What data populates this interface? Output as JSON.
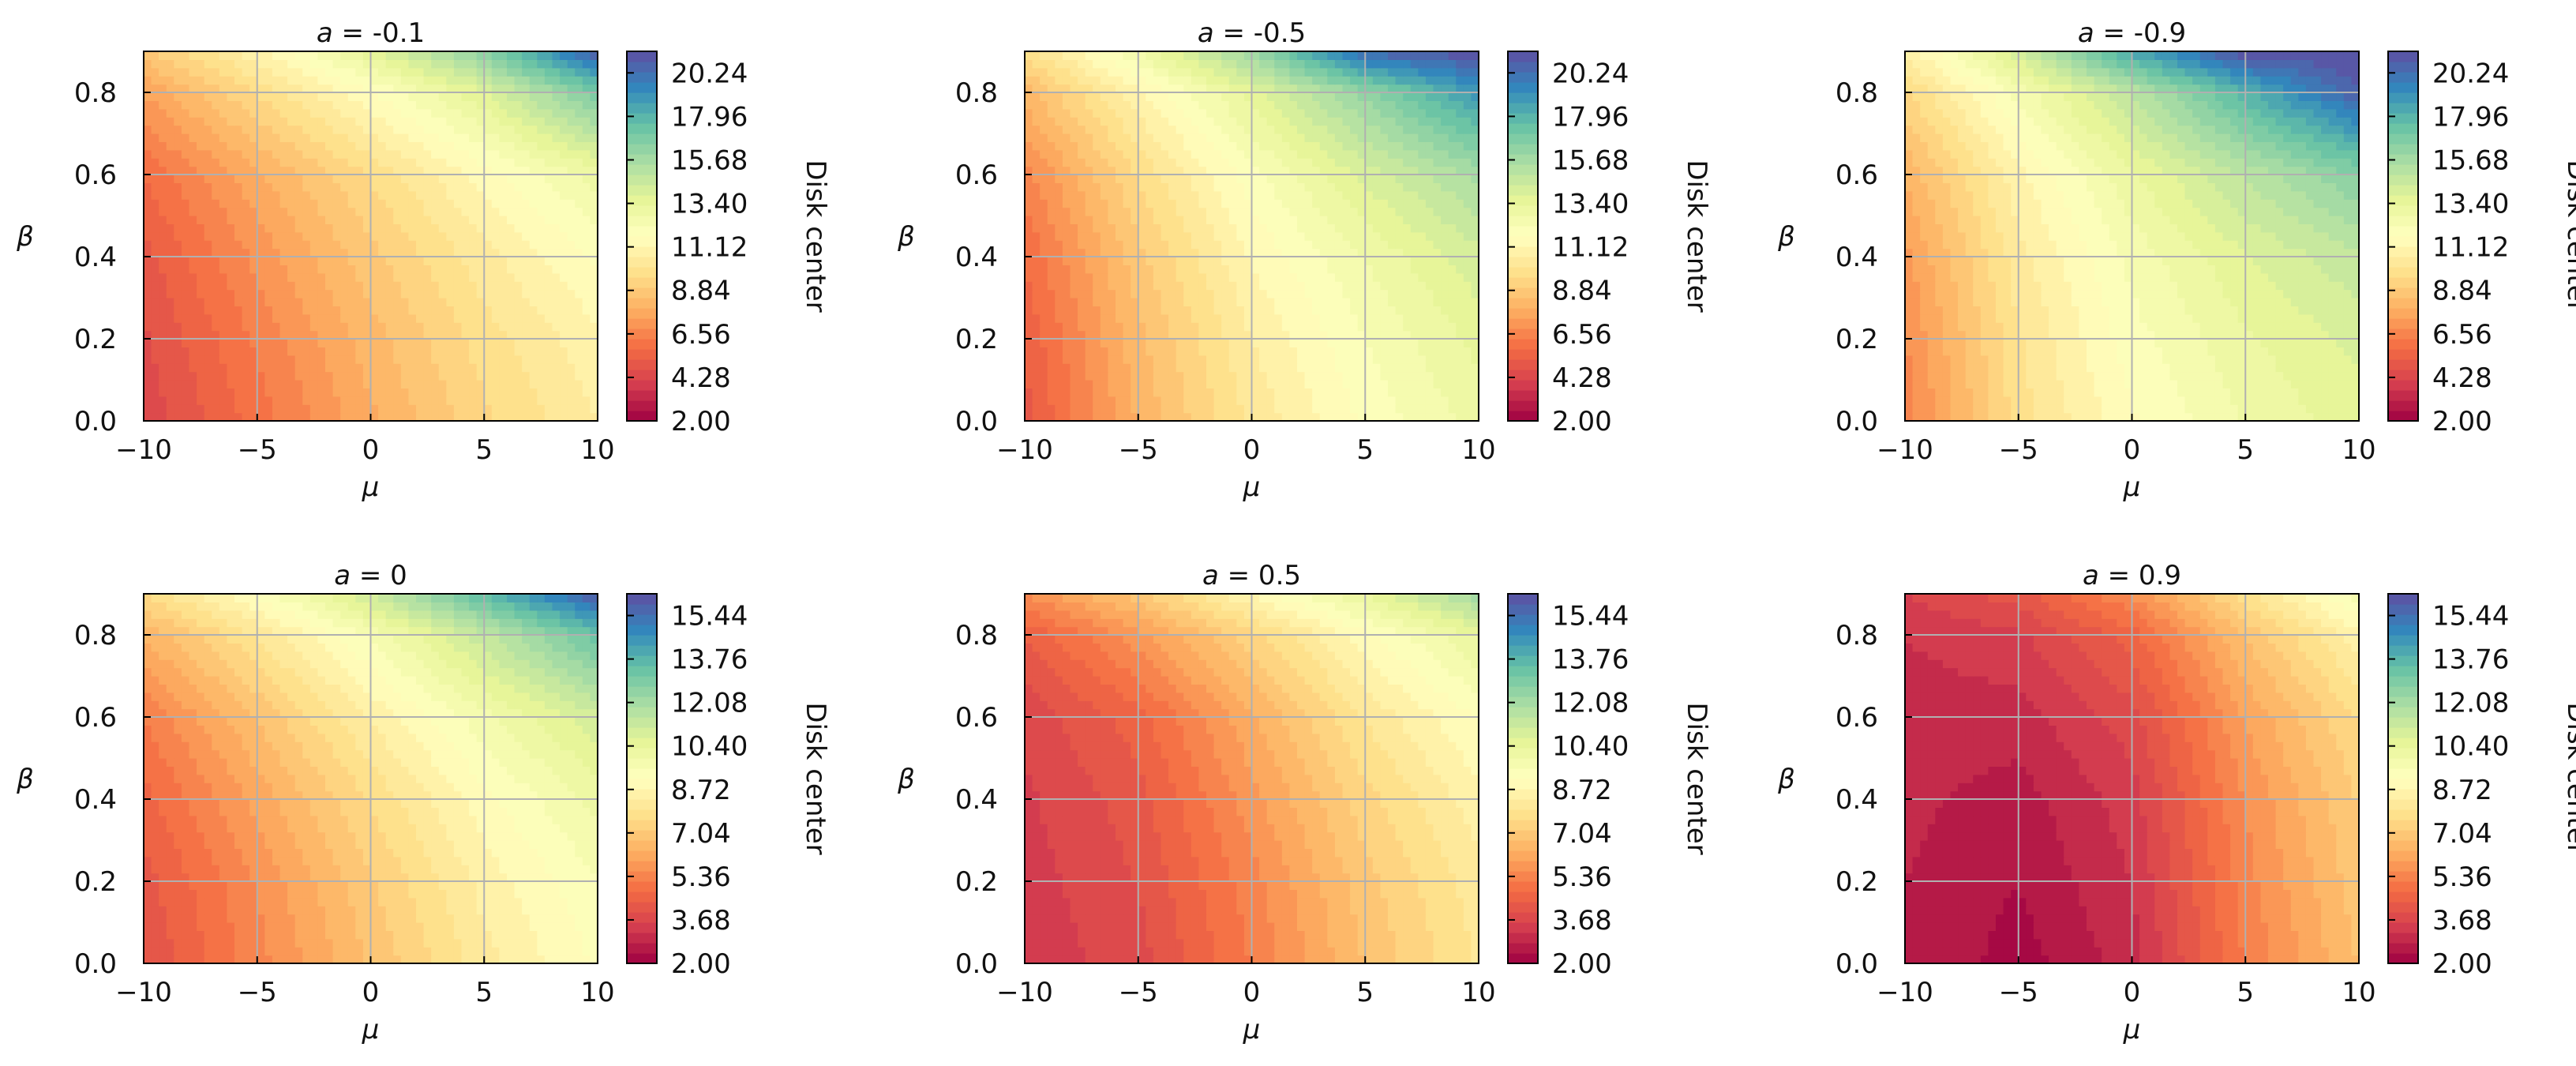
{
  "chart_data": [
    {
      "type": "heatmap",
      "title": "a = -0.1",
      "title_parts": {
        "var": "a",
        "value": "-0.1"
      },
      "xlabel": "μ",
      "ylabel": "β",
      "xlim": [
        -10,
        10
      ],
      "ylim": [
        0,
        0.9
      ],
      "xticks": [
        "−10",
        "−5",
        "0",
        "5",
        "10"
      ],
      "yticks": [
        "0.0",
        "0.2",
        "0.4",
        "0.6",
        "0.8"
      ],
      "grid": true,
      "colormap": "Spectral",
      "colorbar": {
        "label": "Disk center",
        "min": 2.0,
        "max": 21.37,
        "ticks": [
          "2.00",
          "4.28",
          "6.56",
          "8.84",
          "11.12",
          "13.40",
          "15.68",
          "17.96",
          "20.24"
        ]
      },
      "z_grid": {
        "mu": [
          -10,
          -5,
          0,
          5,
          10
        ],
        "beta": [
          0,
          0.2,
          0.4,
          0.6,
          0.8,
          0.9
        ],
        "values": [
          [
            4.3,
            6.0,
            7.8,
            9.4,
            10.6
          ],
          [
            4.6,
            6.4,
            8.2,
            9.8,
            11.0
          ],
          [
            5.0,
            7.0,
            8.8,
            10.4,
            11.8
          ],
          [
            5.8,
            7.8,
            9.6,
            11.4,
            13.0
          ],
          [
            7.4,
            9.6,
            11.6,
            13.8,
            17.0
          ],
          [
            8.8,
            11.0,
            13.6,
            16.4,
            21.0
          ]
        ]
      }
    },
    {
      "type": "heatmap",
      "title": "a = -0.5",
      "title_parts": {
        "var": "a",
        "value": "-0.5"
      },
      "xlabel": "μ",
      "ylabel": "β",
      "xlim": [
        -10,
        10
      ],
      "ylim": [
        0,
        0.9
      ],
      "xticks": [
        "−10",
        "−5",
        "0",
        "5",
        "10"
      ],
      "yticks": [
        "0.0",
        "0.2",
        "0.4",
        "0.6",
        "0.8"
      ],
      "grid": true,
      "colormap": "Spectral",
      "colorbar": {
        "label": "Disk center",
        "min": 2.0,
        "max": 21.37,
        "ticks": [
          "2.00",
          "4.28",
          "6.56",
          "8.84",
          "11.12",
          "13.40",
          "15.68",
          "17.96",
          "20.24"
        ]
      },
      "z_grid": {
        "mu": [
          -10,
          -5,
          0,
          5,
          10
        ],
        "beta": [
          0,
          0.2,
          0.4,
          0.6,
          0.8,
          0.9
        ],
        "values": [
          [
            5.0,
            8.0,
            10.2,
            11.8,
            13.0
          ],
          [
            5.3,
            8.3,
            10.6,
            12.2,
            13.5
          ],
          [
            5.8,
            8.8,
            11.2,
            12.8,
            14.2
          ],
          [
            6.6,
            9.6,
            12.0,
            14.0,
            15.6
          ],
          [
            8.2,
            11.0,
            13.6,
            16.2,
            19.0
          ],
          [
            9.8,
            12.8,
            16.0,
            20.5,
            21.3
          ]
        ]
      }
    },
    {
      "type": "heatmap",
      "title": "a = -0.9",
      "title_parts": {
        "var": "a",
        "value": "-0.9"
      },
      "xlabel": "μ",
      "ylabel": "β",
      "xlim": [
        -10,
        10
      ],
      "ylim": [
        0,
        0.9
      ],
      "xticks": [
        "−10",
        "−5",
        "0",
        "5",
        "10"
      ],
      "yticks": [
        "0.0",
        "0.2",
        "0.4",
        "0.6",
        "0.8"
      ],
      "grid": true,
      "colormap": "Spectral",
      "colorbar": {
        "label": "Disk center",
        "min": 2.0,
        "max": 21.37,
        "ticks": [
          "2.00",
          "4.28",
          "6.56",
          "8.84",
          "11.12",
          "13.40",
          "15.68",
          "17.96",
          "20.24"
        ]
      },
      "z_grid": {
        "mu": [
          -10,
          -5,
          0,
          5,
          10
        ],
        "beta": [
          0,
          0.2,
          0.4,
          0.6,
          0.8,
          0.9
        ],
        "values": [
          [
            6.5,
            9.8,
            11.6,
            12.8,
            13.6
          ],
          [
            6.8,
            10.0,
            12.0,
            13.2,
            14.0
          ],
          [
            7.2,
            10.4,
            12.4,
            13.8,
            14.8
          ],
          [
            8.0,
            11.0,
            13.2,
            15.0,
            16.6
          ],
          [
            9.4,
            12.4,
            15.0,
            18.0,
            20.8
          ],
          [
            10.8,
            14.2,
            18.5,
            21.3,
            21.4
          ]
        ]
      }
    },
    {
      "type": "heatmap",
      "title": "a = 0",
      "title_parts": {
        "var": "a",
        "value": "0"
      },
      "xlabel": "μ",
      "ylabel": "β",
      "xlim": [
        -10,
        10
      ],
      "ylim": [
        0,
        0.9
      ],
      "xticks": [
        "−10",
        "−5",
        "0",
        "5",
        "10"
      ],
      "yticks": [
        "0.0",
        "0.2",
        "0.4",
        "0.6",
        "0.8"
      ],
      "grid": true,
      "colormap": "Spectral",
      "colorbar": {
        "label": "Disk center",
        "min": 2.0,
        "max": 16.28,
        "ticks": [
          "2.00",
          "3.68",
          "5.36",
          "7.04",
          "8.72",
          "10.40",
          "12.08",
          "13.76",
          "15.44"
        ]
      },
      "z_grid": {
        "mu": [
          -10,
          -5,
          0,
          5,
          10
        ],
        "beta": [
          0,
          0.2,
          0.4,
          0.6,
          0.8,
          0.9
        ],
        "values": [
          [
            4.0,
            5.4,
            6.8,
            8.2,
            9.2
          ],
          [
            4.2,
            5.6,
            7.1,
            8.5,
            9.5
          ],
          [
            4.6,
            6.1,
            7.6,
            9.0,
            10.1
          ],
          [
            5.2,
            6.8,
            8.4,
            9.8,
            11.0
          ],
          [
            6.4,
            8.0,
            9.6,
            11.4,
            13.4
          ],
          [
            7.6,
            9.2,
            11.2,
            13.6,
            16.0
          ]
        ]
      }
    },
    {
      "type": "heatmap",
      "title": "a = 0.5",
      "title_parts": {
        "var": "a",
        "value": "0.5"
      },
      "xlabel": "μ",
      "ylabel": "β",
      "xlim": [
        -10,
        10
      ],
      "ylim": [
        0,
        0.9
      ],
      "xticks": [
        "−10",
        "−5",
        "0",
        "5",
        "10"
      ],
      "yticks": [
        "0.0",
        "0.2",
        "0.4",
        "0.6",
        "0.8"
      ],
      "grid": true,
      "colormap": "Spectral",
      "colorbar": {
        "label": "Disk center",
        "min": 2.0,
        "max": 16.28,
        "ticks": [
          "2.00",
          "3.68",
          "5.36",
          "7.04",
          "8.72",
          "10.40",
          "12.08",
          "13.76",
          "15.44"
        ]
      },
      "z_grid": {
        "mu": [
          -10,
          -5,
          0,
          5,
          10
        ],
        "beta": [
          0,
          0.2,
          0.4,
          0.6,
          0.8,
          0.9
        ],
        "values": [
          [
            3.3,
            3.8,
            5.2,
            6.8,
            8.0
          ],
          [
            3.4,
            4.0,
            5.4,
            7.0,
            8.2
          ],
          [
            3.5,
            4.2,
            5.8,
            7.4,
            8.6
          ],
          [
            3.7,
            4.6,
            6.3,
            8.0,
            9.2
          ],
          [
            4.4,
            5.8,
            7.4,
            9.0,
            10.4
          ],
          [
            5.6,
            7.0,
            8.8,
            10.4,
            12.2
          ]
        ]
      }
    },
    {
      "type": "heatmap",
      "title": "a = 0.9",
      "title_parts": {
        "var": "a",
        "value": "0.9"
      },
      "xlabel": "μ",
      "ylabel": "β",
      "xlim": [
        -10,
        10
      ],
      "ylim": [
        0,
        0.9
      ],
      "xticks": [
        "−10",
        "−5",
        "0",
        "5",
        "10"
      ],
      "yticks": [
        "0.0",
        "0.2",
        "0.4",
        "0.6",
        "0.8"
      ],
      "grid": true,
      "colormap": "Spectral",
      "colorbar": {
        "label": "Disk center",
        "min": 2.0,
        "max": 16.28,
        "ticks": [
          "2.00",
          "3.68",
          "5.36",
          "7.04",
          "8.72",
          "10.40",
          "12.08",
          "13.76",
          "15.44"
        ]
      },
      "z_grid": {
        "mu": [
          -10,
          -5,
          0,
          5,
          10
        ],
        "beta": [
          0,
          0.2,
          0.4,
          0.6,
          0.8,
          0.9
        ],
        "values": [
          [
            2.8,
            2.2,
            3.0,
            5.2,
            6.8
          ],
          [
            2.8,
            2.4,
            3.2,
            5.4,
            7.0
          ],
          [
            2.9,
            2.6,
            3.4,
            5.6,
            7.2
          ],
          [
            3.0,
            3.0,
            3.8,
            6.0,
            7.6
          ],
          [
            3.2,
            3.5,
            4.6,
            6.8,
            8.6
          ],
          [
            3.6,
            4.2,
            5.6,
            7.8,
            9.8
          ]
        ]
      }
    }
  ]
}
